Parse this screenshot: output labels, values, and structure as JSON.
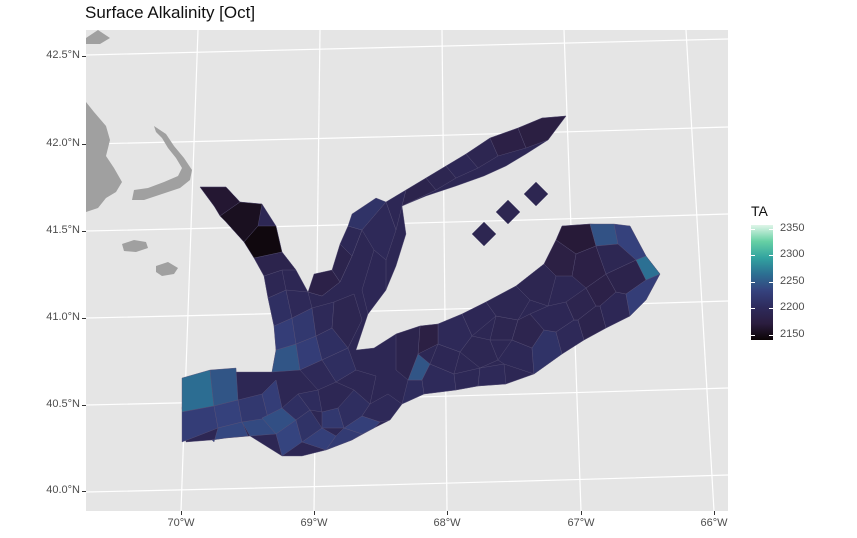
{
  "chart_data": {
    "type": "heatmap",
    "title": "Surface Alkalinity [Oct]",
    "x_ticks": [
      "70°W",
      "69°W",
      "68°W",
      "67°W",
      "66°W"
    ],
    "y_ticks": [
      "42.5°N",
      "42.0°N",
      "41.5°N",
      "41.0°N",
      "40.5°N",
      "40.0°N"
    ],
    "xlim": [
      -70.7,
      -65.9
    ],
    "ylim": [
      39.9,
      42.65
    ],
    "legend": {
      "title": "TA",
      "ticks": [
        "2350",
        "2300",
        "2250",
        "2200",
        "2150"
      ],
      "range": [
        2140,
        2365
      ],
      "palette": [
        "#0b0405",
        "#2b1d3f",
        "#2e2b5c",
        "#35427e",
        "#2c6e92",
        "#32a3a0",
        "#66d0a4",
        "#dff5e8"
      ],
      "position": "right"
    },
    "grid": true,
    "land_color": "#a0a0a0",
    "panel_color": "#e5e5e5"
  }
}
